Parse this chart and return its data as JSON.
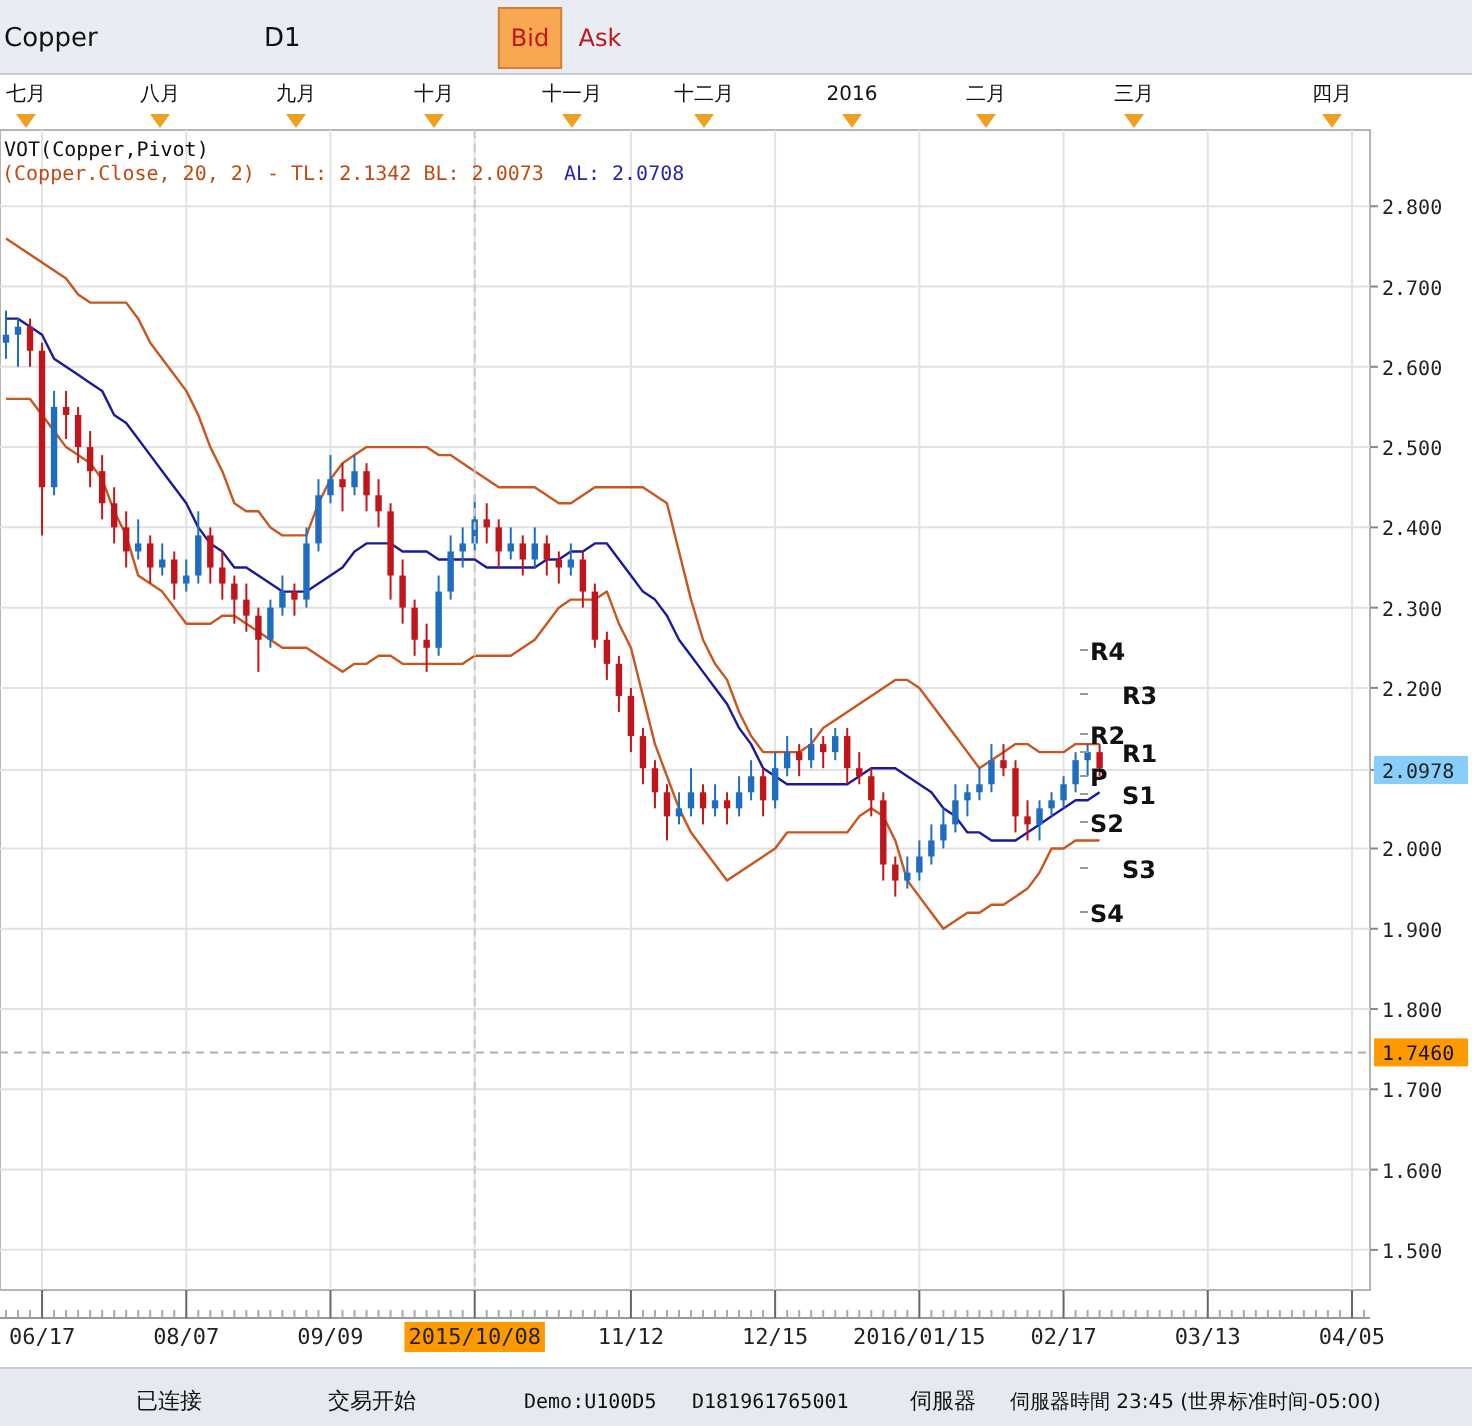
{
  "chart_data": {
    "type": "candlestick",
    "categories": [
      null,
      null,
      null,
      "06/17",
      null,
      null,
      null,
      null,
      null,
      null,
      null,
      null,
      null,
      null,
      null,
      "08/07",
      null,
      null,
      null,
      null,
      null,
      null,
      null,
      null,
      null,
      null,
      null,
      "09/09",
      null,
      null,
      null,
      null,
      null,
      null,
      null,
      null,
      null,
      null,
      null,
      "2015/10/08",
      null,
      null,
      null,
      null,
      null,
      null,
      null,
      null,
      null,
      null,
      null,
      null,
      "11/12",
      null,
      null,
      null,
      null,
      null,
      null,
      null,
      null,
      null,
      null,
      null,
      "12/15",
      null,
      null,
      null,
      null,
      null,
      null,
      null,
      null,
      null,
      null,
      null,
      "2016/01/15",
      null,
      null,
      null,
      null,
      null,
      null,
      null,
      null,
      null,
      null,
      null,
      "02/17",
      null,
      null,
      null,
      null,
      null,
      null,
      null,
      null,
      null,
      null,
      null,
      "03/13",
      null,
      null,
      null,
      null,
      null,
      null,
      null,
      null,
      null,
      null,
      null,
      "04/05",
      null
    ],
    "ylim": [
      1.45,
      2.895
    ],
    "yticks": [
      {
        "value": 1.5,
        "label": "1.500"
      },
      {
        "value": 1.6,
        "label": "1.600"
      },
      {
        "value": 1.7,
        "label": "1.700"
      },
      {
        "value": 1.8,
        "label": "1.800"
      },
      {
        "value": 1.9,
        "label": "1.900"
      },
      {
        "value": 2.0,
        "label": "2.000"
      },
      {
        "value": 2.0978,
        "label": "2.0978"
      },
      {
        "value": 2.2,
        "label": "2.200"
      },
      {
        "value": 2.3,
        "label": "2.300"
      },
      {
        "value": 2.4,
        "label": "2.400"
      },
      {
        "value": 2.5,
        "label": "2.500"
      },
      {
        "value": 2.6,
        "label": "2.600"
      },
      {
        "value": 2.7,
        "label": "2.700"
      },
      {
        "value": 2.8,
        "label": "2.800"
      }
    ],
    "grid": true,
    "series": [
      {
        "type": "line",
        "color": "#c8561e",
        "values": [
          2.76,
          2.75,
          2.74,
          2.73,
          2.72,
          2.71,
          2.69,
          2.68,
          2.68,
          2.68,
          2.68,
          2.66,
          2.63,
          2.61,
          2.59,
          2.57,
          2.54,
          2.5,
          2.47,
          2.43,
          2.42,
          2.42,
          2.4,
          2.39,
          2.39,
          2.39,
          2.43,
          2.46,
          2.48,
          2.49,
          2.5,
          2.5,
          2.5,
          2.5,
          2.5,
          2.5,
          2.49,
          2.49,
          2.48,
          2.47,
          2.46,
          2.45,
          2.45,
          2.45,
          2.45,
          2.44,
          2.43,
          2.43,
          2.44,
          2.45,
          2.45,
          2.45,
          2.45,
          2.45,
          2.44,
          2.43,
          2.37,
          2.31,
          2.26,
          2.23,
          2.21,
          2.17,
          2.14,
          2.12,
          2.12,
          2.12,
          2.12,
          2.13,
          2.15,
          2.16,
          2.17,
          2.18,
          2.19,
          2.2,
          2.21,
          2.21,
          2.2,
          2.18,
          2.16,
          2.14,
          2.12,
          2.1,
          2.11,
          2.12,
          2.13,
          2.13,
          2.12,
          2.12,
          2.12,
          2.13,
          2.13,
          2.13,
          null,
          null,
          null,
          null,
          null,
          null,
          null,
          null,
          null,
          null,
          null,
          null,
          null,
          null,
          null,
          null,
          null,
          null,
          null,
          null,
          null,
          null
        ]
      },
      {
        "type": "line",
        "color": "#1a1a9c",
        "values": [
          2.66,
          2.66,
          2.65,
          2.64,
          2.61,
          2.6,
          2.59,
          2.58,
          2.57,
          2.54,
          2.53,
          2.51,
          2.49,
          2.47,
          2.45,
          2.43,
          2.4,
          2.38,
          2.37,
          2.35,
          2.35,
          2.34,
          2.33,
          2.32,
          2.32,
          2.32,
          2.33,
          2.34,
          2.35,
          2.37,
          2.38,
          2.38,
          2.38,
          2.37,
          2.37,
          2.37,
          2.36,
          2.36,
          2.36,
          2.36,
          2.35,
          2.35,
          2.35,
          2.35,
          2.35,
          2.36,
          2.36,
          2.37,
          2.37,
          2.38,
          2.38,
          2.36,
          2.34,
          2.32,
          2.31,
          2.29,
          2.26,
          2.24,
          2.22,
          2.2,
          2.18,
          2.15,
          2.13,
          2.1,
          2.09,
          2.08,
          2.08,
          2.08,
          2.08,
          2.08,
          2.08,
          2.09,
          2.1,
          2.1,
          2.1,
          2.09,
          2.08,
          2.07,
          2.05,
          2.04,
          2.02,
          2.02,
          2.01,
          2.01,
          2.01,
          2.02,
          2.03,
          2.04,
          2.05,
          2.06,
          2.06,
          2.07,
          null,
          null,
          null,
          null,
          null,
          null,
          null,
          null,
          null,
          null,
          null,
          null,
          null,
          null,
          null,
          null,
          null,
          null,
          null,
          null,
          null,
          null
        ]
      },
      {
        "type": "line",
        "color": "#c8561e",
        "values": [
          2.56,
          2.56,
          2.56,
          2.54,
          2.52,
          2.5,
          2.49,
          2.48,
          2.46,
          2.42,
          2.39,
          2.34,
          2.33,
          2.32,
          2.3,
          2.28,
          2.28,
          2.28,
          2.29,
          2.29,
          2.28,
          2.27,
          2.26,
          2.25,
          2.25,
          2.25,
          2.24,
          2.23,
          2.22,
          2.23,
          2.23,
          2.24,
          2.24,
          2.23,
          2.23,
          2.23,
          2.23,
          2.23,
          2.23,
          2.24,
          2.24,
          2.24,
          2.24,
          2.25,
          2.26,
          2.28,
          2.3,
          2.31,
          2.31,
          2.31,
          2.32,
          2.28,
          2.25,
          2.19,
          2.13,
          2.09,
          2.05,
          2.02,
          2.0,
          1.98,
          1.96,
          1.97,
          1.98,
          1.99,
          2.0,
          2.02,
          2.02,
          2.02,
          2.02,
          2.02,
          2.02,
          2.04,
          2.05,
          2.04,
          2.01,
          1.96,
          1.94,
          1.92,
          1.9,
          1.91,
          1.92,
          1.92,
          1.93,
          1.93,
          1.94,
          1.95,
          1.97,
          2.0,
          2.0,
          2.01,
          2.01,
          2.01,
          null,
          null,
          null,
          null,
          null,
          null,
          null,
          null,
          null,
          null,
          null,
          null,
          null,
          null,
          null,
          null,
          null,
          null,
          null,
          null,
          null,
          null
        ]
      },
      {
        "ohlc": [
          [
            2.63,
            2.67,
            2.61,
            2.64
          ],
          [
            2.64,
            2.66,
            2.6,
            2.65
          ],
          [
            2.65,
            2.66,
            2.6,
            2.62
          ],
          [
            2.62,
            2.63,
            2.39,
            2.45
          ],
          [
            2.45,
            2.57,
            2.44,
            2.55
          ],
          [
            2.55,
            2.57,
            2.51,
            2.54
          ],
          [
            2.54,
            2.55,
            2.48,
            2.5
          ],
          [
            2.5,
            2.52,
            2.45,
            2.47
          ],
          [
            2.47,
            2.49,
            2.41,
            2.43
          ],
          [
            2.43,
            2.45,
            2.38,
            2.4
          ],
          [
            2.4,
            2.42,
            2.35,
            2.37
          ],
          [
            2.37,
            2.41,
            2.36,
            2.38
          ],
          [
            2.38,
            2.39,
            2.33,
            2.35
          ],
          [
            2.35,
            2.38,
            2.34,
            2.36
          ],
          [
            2.36,
            2.37,
            2.31,
            2.33
          ],
          [
            2.33,
            2.36,
            2.32,
            2.34
          ],
          [
            2.34,
            2.42,
            2.33,
            2.39
          ],
          [
            2.39,
            2.4,
            2.33,
            2.35
          ],
          [
            2.35,
            2.37,
            2.31,
            2.33
          ],
          [
            2.33,
            2.34,
            2.28,
            2.31
          ],
          [
            2.31,
            2.33,
            2.27,
            2.29
          ],
          [
            2.29,
            2.3,
            2.22,
            2.26
          ],
          [
            2.26,
            2.31,
            2.25,
            2.3
          ],
          [
            2.3,
            2.34,
            2.29,
            2.32
          ],
          [
            2.32,
            2.33,
            2.29,
            2.31
          ],
          [
            2.31,
            2.4,
            2.3,
            2.38
          ],
          [
            2.38,
            2.46,
            2.37,
            2.44
          ],
          [
            2.44,
            2.49,
            2.43,
            2.46
          ],
          [
            2.46,
            2.48,
            2.42,
            2.45
          ],
          [
            2.45,
            2.49,
            2.44,
            2.47
          ],
          [
            2.47,
            2.48,
            2.42,
            2.44
          ],
          [
            2.44,
            2.46,
            2.4,
            2.42
          ],
          [
            2.42,
            2.43,
            2.31,
            2.34
          ],
          [
            2.34,
            2.36,
            2.28,
            2.3
          ],
          [
            2.3,
            2.31,
            2.24,
            2.26
          ],
          [
            2.26,
            2.28,
            2.22,
            2.25
          ],
          [
            2.25,
            2.34,
            2.24,
            2.32
          ],
          [
            2.32,
            2.39,
            2.31,
            2.37
          ],
          [
            2.37,
            2.4,
            2.35,
            2.38
          ],
          [
            2.38,
            2.44,
            2.37,
            2.41
          ],
          [
            2.41,
            2.43,
            2.38,
            2.4
          ],
          [
            2.4,
            2.41,
            2.35,
            2.37
          ],
          [
            2.37,
            2.4,
            2.36,
            2.38
          ],
          [
            2.38,
            2.39,
            2.34,
            2.36
          ],
          [
            2.36,
            2.4,
            2.35,
            2.38
          ],
          [
            2.38,
            2.39,
            2.34,
            2.36
          ],
          [
            2.36,
            2.37,
            2.33,
            2.35
          ],
          [
            2.35,
            2.38,
            2.34,
            2.36
          ],
          [
            2.36,
            2.37,
            2.3,
            2.32
          ],
          [
            2.32,
            2.33,
            2.25,
            2.26
          ],
          [
            2.26,
            2.27,
            2.21,
            2.23
          ],
          [
            2.23,
            2.24,
            2.17,
            2.19
          ],
          [
            2.19,
            2.2,
            2.12,
            2.14
          ],
          [
            2.14,
            2.15,
            2.08,
            2.1
          ],
          [
            2.1,
            2.11,
            2.05,
            2.07
          ],
          [
            2.07,
            2.08,
            2.01,
            2.04
          ],
          [
            2.04,
            2.07,
            2.03,
            2.05
          ],
          [
            2.05,
            2.1,
            2.04,
            2.07
          ],
          [
            2.07,
            2.08,
            2.03,
            2.05
          ],
          [
            2.05,
            2.08,
            2.04,
            2.06
          ],
          [
            2.06,
            2.07,
            2.03,
            2.05
          ],
          [
            2.05,
            2.09,
            2.04,
            2.07
          ],
          [
            2.07,
            2.11,
            2.06,
            2.09
          ],
          [
            2.09,
            2.1,
            2.04,
            2.06
          ],
          [
            2.06,
            2.12,
            2.05,
            2.1
          ],
          [
            2.1,
            2.14,
            2.09,
            2.12
          ],
          [
            2.12,
            2.13,
            2.09,
            2.11
          ],
          [
            2.11,
            2.15,
            2.1,
            2.13
          ],
          [
            2.13,
            2.14,
            2.1,
            2.12
          ],
          [
            2.12,
            2.15,
            2.11,
            2.14
          ],
          [
            2.14,
            2.15,
            2.08,
            2.1
          ],
          [
            2.1,
            2.12,
            2.08,
            2.09
          ],
          [
            2.09,
            2.1,
            2.04,
            2.06
          ],
          [
            2.06,
            2.07,
            1.96,
            1.98
          ],
          [
            1.98,
            1.99,
            1.94,
            1.96
          ],
          [
            1.96,
            1.99,
            1.95,
            1.97
          ],
          [
            1.97,
            2.01,
            1.96,
            1.99
          ],
          [
            1.99,
            2.03,
            1.98,
            2.01
          ],
          [
            2.01,
            2.05,
            2.0,
            2.03
          ],
          [
            2.03,
            2.08,
            2.02,
            2.06
          ],
          [
            2.06,
            2.08,
            2.04,
            2.07
          ],
          [
            2.07,
            2.1,
            2.06,
            2.08
          ],
          [
            2.08,
            2.13,
            2.07,
            2.11
          ],
          [
            2.11,
            2.13,
            2.09,
            2.1
          ],
          [
            2.1,
            2.11,
            2.02,
            2.04
          ],
          [
            2.04,
            2.06,
            2.01,
            2.03
          ],
          [
            2.03,
            2.06,
            2.01,
            2.05
          ],
          [
            2.05,
            2.07,
            2.04,
            2.06
          ],
          [
            2.06,
            2.09,
            2.05,
            2.08
          ],
          [
            2.08,
            2.12,
            2.07,
            2.11
          ],
          [
            2.11,
            2.13,
            2.09,
            2.12
          ],
          [
            2.12,
            2.13,
            2.09,
            2.1
          ],
          null,
          null,
          null,
          null,
          null,
          null,
          null,
          null,
          null,
          null,
          null,
          null,
          null,
          null,
          null,
          null,
          null,
          null,
          null,
          null,
          null,
          null
        ],
        "colors": [
          "#1f6dc0",
          "#1f6dc0",
          "#c0151b",
          "#c0151b",
          "#1f6dc0",
          "#c0151b",
          "#c0151b",
          "#c0151b",
          "#c0151b",
          "#c0151b",
          "#c0151b",
          "#1f6dc0",
          "#c0151b",
          "#1f6dc0",
          "#c0151b",
          "#1f6dc0",
          "#1f6dc0",
          "#c0151b",
          "#c0151b",
          "#c0151b",
          "#c0151b",
          "#c0151b",
          "#1f6dc0",
          "#1f6dc0",
          "#c0151b",
          "#1f6dc0",
          "#1f6dc0",
          "#1f6dc0",
          "#c0151b",
          "#1f6dc0",
          "#c0151b",
          "#c0151b",
          "#c0151b",
          "#c0151b",
          "#c0151b",
          "#c0151b",
          "#1f6dc0",
          "#1f6dc0",
          "#1f6dc0",
          "#1f6dc0",
          "#c0151b",
          "#c0151b",
          "#1f6dc0",
          "#c0151b",
          "#1f6dc0",
          "#c0151b",
          "#c0151b",
          "#1f6dc0",
          "#c0151b",
          "#c0151b",
          "#c0151b",
          "#c0151b",
          "#c0151b",
          "#c0151b",
          "#c0151b",
          "#c0151b",
          "#1f6dc0",
          "#1f6dc0",
          "#c0151b",
          "#1f6dc0",
          "#c0151b",
          "#1f6dc0",
          "#1f6dc0",
          "#c0151b",
          "#1f6dc0",
          "#1f6dc0",
          "#c0151b",
          "#1f6dc0",
          "#c0151b",
          "#1f6dc0",
          "#c0151b",
          "#c0151b",
          "#c0151b",
          "#c0151b",
          "#c0151b",
          "#1f6dc0",
          "#1f6dc0",
          "#1f6dc0",
          "#1f6dc0",
          "#1f6dc0",
          "#1f6dc0",
          "#1f6dc0",
          "#1f6dc0",
          "#c0151b",
          "#c0151b",
          "#c0151b",
          "#1f6dc0",
          "#1f6dc0",
          "#1f6dc0",
          "#1f6dc0",
          "#1f6dc0",
          "#c0151b",
          null,
          null,
          null,
          null,
          null,
          null,
          null,
          null,
          null,
          null,
          null,
          null,
          null,
          null,
          null,
          null,
          null,
          null,
          null,
          null,
          null,
          null
        ]
      }
    ],
    "ref_lines": [
      {
        "axis": "y",
        "value": 1.746,
        "label": "1.7460",
        "color": "#b0b0b0",
        "line_style": "dashed"
      },
      {
        "axis": "x",
        "value": "2015/10/08",
        "color": "#c8c8c8",
        "line_style": "dashed"
      }
    ],
    "annotations": [
      "VOT(Copper,Pivot)",
      "(Copper.Close, 20, 2) -  TL: 2.1342  BL: 2.0073",
      "AL: 2.0708",
      "Copper",
      "D1",
      "Bid",
      "Ask",
      "已连接",
      "交易开始",
      "Demo:U100D5",
      "D181961765001",
      "伺服器",
      "伺服器時間 23:45 (世界标准时间-05:00)",
      "七月",
      "八月",
      "九月",
      "十月",
      "十一月",
      "十二月",
      "2016",
      "二月",
      "三月",
      "四月",
      "R4",
      "R3",
      "R2",
      "R1",
      "P",
      "S1",
      "S2",
      "S3",
      "S4"
    ]
  }
}
